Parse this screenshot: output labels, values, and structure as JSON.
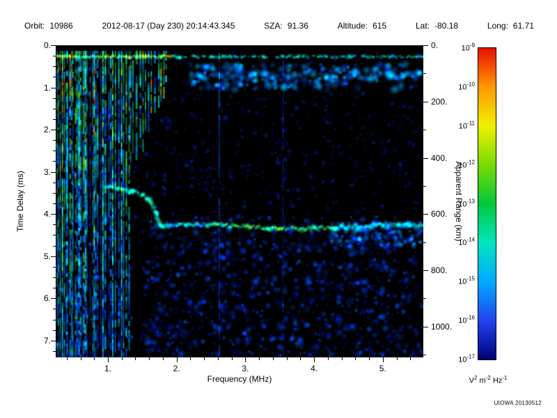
{
  "header": {
    "items": [
      {
        "label": "Orbit:",
        "value": "10986"
      },
      {
        "label": "",
        "value": "2012-08-17 (Day 230) 20:14:43.345"
      },
      {
        "label": "SZA:",
        "value": "91.36"
      },
      {
        "label": "Altitude:",
        "value": "615"
      },
      {
        "label": "Lat:",
        "value": "-80.18"
      },
      {
        "label": "Long:",
        "value": "61.71"
      }
    ]
  },
  "footer": {
    "credit": "UIOWA 20130512"
  },
  "chart_data": {
    "type": "heatmap",
    "title": "",
    "xlabel": "Frequency (MHz)",
    "ylabel_left": "Time Delay (ms)",
    "ylabel_right": "Apparent Range (km)",
    "xlim": [
      0.24,
      5.59
    ],
    "ylim": [
      0,
      7.4
    ],
    "x_ticks": [
      1,
      2,
      3,
      4,
      5
    ],
    "x_tick_labels": [
      "1.",
      "2.",
      "3.",
      "4.",
      "5."
    ],
    "y_ticks": [
      0,
      1,
      2,
      3,
      4,
      5,
      6,
      7
    ],
    "y_tick_labels": [
      "0.",
      "1.",
      "2.",
      "3.",
      "4.",
      "5.",
      "6.",
      "7."
    ],
    "y_right_ticks_km": [
      0,
      200,
      400,
      600,
      800,
      1000
    ],
    "y_right_tick_labels": [
      "0.",
      "200.",
      "400.",
      "600.",
      "800.",
      "1000."
    ],
    "range_km_per_ms": 149.9,
    "grid": false,
    "background": "#000000",
    "colorbar": {
      "scale": "log",
      "tick_exponents": [
        -9,
        -10,
        -11,
        -12,
        -13,
        -14,
        -15,
        -16,
        -17
      ],
      "unit_parts": [
        [
          "V",
          "2"
        ],
        [
          " m",
          "-2"
        ],
        [
          " Hz",
          "-1"
        ]
      ],
      "colors_top_to_bottom": [
        "#e81000",
        "#ff9800",
        "#f0f000",
        "#78dc00",
        "#00c83c",
        "#00e6c0",
        "#00aaff",
        "#2244ee",
        "#000078"
      ]
    },
    "features": {
      "transmit_pulse": {
        "time_ms": 0.27,
        "f0": 0.24,
        "f1": 5.59
      },
      "plasma_harmonics": {
        "f0": 0.26,
        "f1": 1.32,
        "full_depth_ms": 7.4
      },
      "harmonic_spikes": {
        "f0": 1.33,
        "f1": 1.88,
        "depth_start_ms": 2.8,
        "depth_end_ms": 0.9
      },
      "second_hop_band": {
        "time_ms": 0.72,
        "f0": 2.35,
        "f1": 5.55
      },
      "ionospheric_echo": {
        "points": [
          [
            0.95,
            3.35
          ],
          [
            1.15,
            3.4
          ],
          [
            1.35,
            3.45
          ],
          [
            1.5,
            3.55
          ],
          [
            1.62,
            3.7
          ],
          [
            1.7,
            3.95
          ],
          [
            1.76,
            4.25
          ]
        ]
      },
      "surface_reflection": {
        "time_ms": 4.3,
        "f0": 1.75,
        "f1": 5.59
      },
      "interference_lines_mhz": [
        2.62,
        3.55
      ]
    }
  }
}
